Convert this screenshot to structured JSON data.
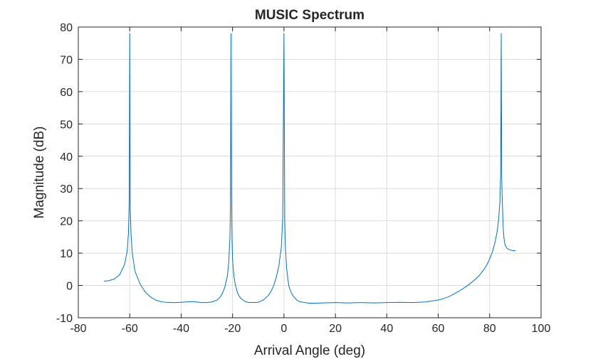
{
  "chart_data": {
    "type": "line",
    "title": "MUSIC Spectrum",
    "xlabel": "Arrival Angle (deg)",
    "ylabel": "Magnitude (dB)",
    "xlim": [
      -80,
      100
    ],
    "ylim": [
      -10,
      80
    ],
    "xticks": [
      -80,
      -60,
      -40,
      -20,
      0,
      20,
      40,
      60,
      80,
      100
    ],
    "yticks": [
      -10,
      0,
      10,
      20,
      30,
      40,
      50,
      60,
      70,
      80
    ],
    "grid": true,
    "line_color": "#0072BD",
    "series": [
      {
        "x": [
          -70,
          -68,
          -66,
          -64,
          -62,
          -61,
          -60.5,
          -60.2,
          -60,
          -59.8,
          -59.5,
          -59,
          -58,
          -56,
          -54,
          -52,
          -50,
          -48,
          -46,
          -44,
          -42,
          -40,
          -38,
          -36,
          -34,
          -32,
          -30,
          -28,
          -26,
          -25,
          -24,
          -23,
          -22,
          -21.5,
          -21,
          -20.8,
          -20.6,
          -20.4,
          -20.2,
          -20,
          -19.5,
          -19,
          -18,
          -17,
          -16,
          -15,
          -14,
          -12,
          -10,
          -8,
          -6,
          -5,
          -4,
          -3,
          -2,
          -1,
          -0.5,
          0,
          0.3,
          0.5,
          0.7,
          1,
          1.5,
          2,
          3,
          4,
          5,
          6,
          8,
          10,
          12,
          15,
          20,
          25,
          30,
          35,
          40,
          45,
          50,
          55,
          60,
          62,
          64,
          66,
          68,
          70,
          72,
          74,
          76,
          78,
          79,
          80,
          81,
          82,
          83,
          83.5,
          84,
          84.3,
          84.5,
          84.7,
          85,
          85.3,
          85.6,
          86,
          86.5,
          87,
          88,
          89,
          90
        ],
        "y": [
          1.3,
          1.5,
          2,
          3.2,
          6.5,
          10.5,
          16,
          26,
          78,
          24,
          16,
          10,
          4.5,
          0.5,
          -2,
          -3.5,
          -4.5,
          -5,
          -5.2,
          -5.3,
          -5.3,
          -5.2,
          -5.1,
          -5,
          -5.1,
          -5.3,
          -5.3,
          -5.1,
          -4.5,
          -3.8,
          -2.5,
          -0.5,
          3,
          7,
          15,
          26,
          78,
          28,
          14,
          8,
          3,
          0.5,
          -2.5,
          -3.8,
          -4.5,
          -5,
          -5.2,
          -5.3,
          -5.2,
          -4.5,
          -3,
          -1.8,
          0,
          2.5,
          6,
          12,
          21,
          78,
          20,
          13,
          10,
          5.5,
          2,
          -0.5,
          -2.5,
          -3.7,
          -4.5,
          -5,
          -5.3,
          -5.5,
          -5.5,
          -5.4,
          -5.3,
          -5.4,
          -5.3,
          -5.4,
          -5.3,
          -5.2,
          -5.3,
          -5.1,
          -4.5,
          -4.1,
          -3.5,
          -2.7,
          -1.8,
          -0.8,
          0.3,
          1.6,
          3.1,
          5.2,
          6.5,
          8.2,
          10.2,
          13,
          17,
          20.5,
          26,
          35,
          78,
          33,
          24,
          17.5,
          14.5,
          12.5,
          11.8,
          11.3,
          11,
          10.8,
          10.8
        ]
      }
    ]
  }
}
